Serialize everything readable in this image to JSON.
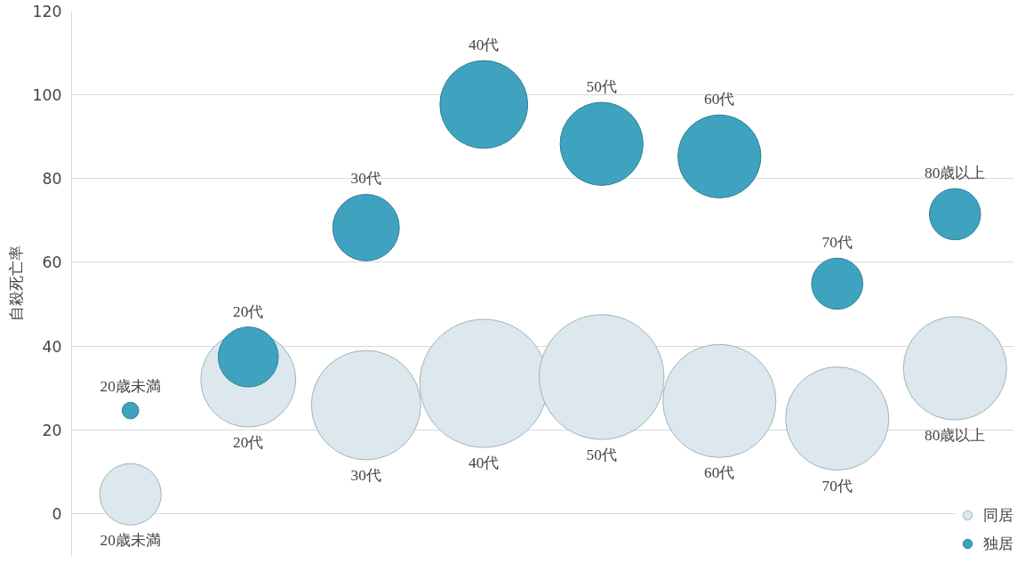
{
  "chart_data": {
    "type": "bubble",
    "ylabel": "自殺死亡率",
    "categories": [
      "20歳未満",
      "20代",
      "30代",
      "40代",
      "50代",
      "60代",
      "70代",
      "80歳以上"
    ],
    "series": [
      {
        "name": "同居",
        "color": "#dce8ed",
        "values": [
          4.6,
          32,
          25.9,
          31.1,
          32.6,
          26.9,
          22.7,
          34.7
        ],
        "sizes": [
          0.23,
          0.55,
          0.73,
          1,
          0.95,
          0.78,
          0.65,
          0.65
        ]
      },
      {
        "name": "独居",
        "color": "#3fa3bf",
        "values": [
          24.6,
          37.4,
          68.3,
          97.7,
          88.3,
          85.3,
          54.9,
          71.5
        ],
        "sizes": [
          0.017,
          0.22,
          0.27,
          0.47,
          0.42,
          0.42,
          0.16,
          0.16
        ]
      }
    ],
    "ylim": [
      -10,
      120
    ],
    "yticks": [
      0,
      20,
      40,
      60,
      80,
      100,
      120
    ],
    "grid": "y",
    "legend": "bottom right",
    "tick_labels": "y"
  }
}
